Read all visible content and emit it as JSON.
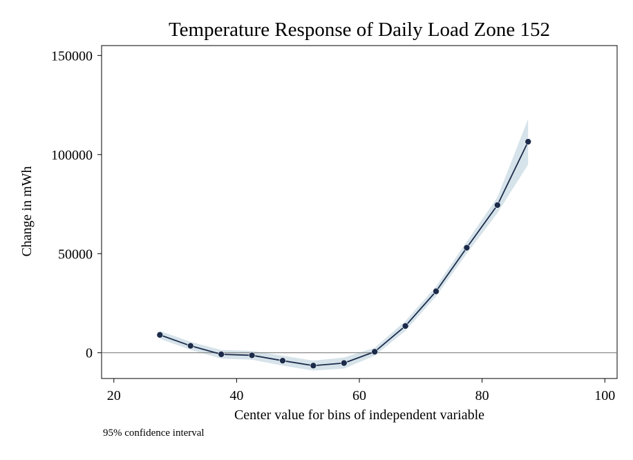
{
  "chart_data": {
    "type": "line",
    "title": "Temperature Response of Daily Load Zone 152",
    "xlabel": "Center value for bins of independent variable",
    "ylabel": "Change in mWh",
    "note": "95% confidence interval",
    "xlim": [
      18,
      102
    ],
    "ylim": [
      -13000,
      155000
    ],
    "xticks": [
      20,
      40,
      60,
      80,
      100
    ],
    "yticks": [
      0,
      50000,
      100000,
      150000
    ],
    "xtick_labels": [
      "20",
      "40",
      "60",
      "80",
      "100"
    ],
    "ytick_labels": [
      "0",
      "50000",
      "100000",
      "150000"
    ],
    "reference_line_y": 0,
    "grid": false,
    "series": [
      {
        "x": [
          27.5,
          32.5,
          37.5,
          42.5,
          47.5,
          52.5,
          57.5,
          62.5,
          67.5,
          72.5,
          77.5,
          82.5,
          87.5
        ],
        "y": [
          9000,
          3500,
          -800,
          -1300,
          -4000,
          -6500,
          -5200,
          500,
          13500,
          31000,
          53000,
          74500,
          106500
        ],
        "ci_low": [
          7000,
          1500,
          -3000,
          -3500,
          -6500,
          -9000,
          -8000,
          -1500,
          11000,
          28500,
          50000,
          70500,
          95000
        ],
        "ci_high": [
          11000,
          5500,
          1400,
          900,
          -1500,
          -4000,
          -2400,
          2500,
          16000,
          33500,
          56000,
          78500,
          118000
        ],
        "color": "#1c2b4a",
        "ci_color": "#d6e3ea"
      }
    ]
  }
}
